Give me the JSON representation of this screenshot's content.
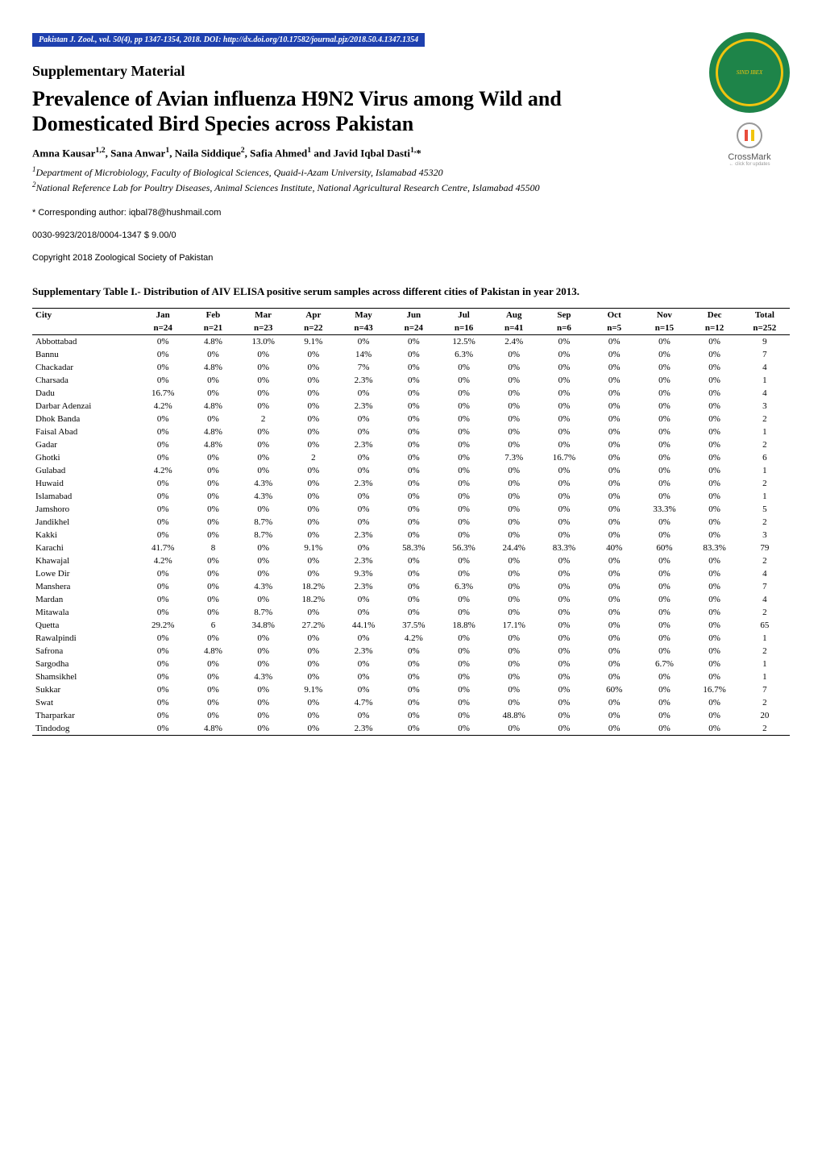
{
  "journal": {
    "citation": "Pakistan J. Zool., vol. 50(4), pp 1347-1354, 2018.",
    "doi_label": "DOI",
    "doi_text": ": http://dx.doi.org/10.17582/journal.pjz/2018.50.4.1347.1354",
    "header_bg": "#1e40af",
    "header_color": "#ffffff"
  },
  "logos": {
    "society_bg": "#1e8449",
    "society_ring": "#f1c40f",
    "society_text": "SIND IBEX",
    "crossmark_label": "CrossMark",
    "crossmark_sub": "← click for updates"
  },
  "header": {
    "supplementary": "Supplementary Material",
    "title": "Prevalence of Avian influenza H9N2 Virus among Wild and Domesticated Bird Species across Pakistan"
  },
  "authors": {
    "line": "Amna Kausar<sup>1,2</sup>, Sana Anwar<sup>1</sup>, Naila Siddique<sup>2</sup>, Safia Ahmed<sup>1</sup> and Javid Iqbal Dasti<sup>1,</sup>*",
    "aff1": "<sup>1</sup>Department of Microbiology, Faculty of Biological Sciences, Quaid-i-Azam University, Islamabad 45320",
    "aff2": "<sup>2</sup>National Reference Lab for Poultry Diseases, Animal Sciences Institute, National Agricultural Research Centre, Islamabad 45500"
  },
  "footer": {
    "corresponding": "*    Corresponding author: iqbal78@hushmail.com",
    "issn": "0030-9923/2018/0004-1347 $ 9.00/0",
    "copyright": "Copyright 2018 Zoological Society of Pakistan"
  },
  "table": {
    "caption": "Supplementary Table I.- Distribution of AIV ELISA positive serum samples across different cities of Pakistan in year 2013.",
    "font_size": 11,
    "columns": [
      "City",
      "Jan",
      "Feb",
      "Mar",
      "Apr",
      "May",
      "Jun",
      "Jul",
      "Aug",
      "Sep",
      "Oct",
      "Nov",
      "Dec",
      "Total"
    ],
    "subheader": [
      "",
      "n=24",
      "n=21",
      "n=23",
      "n=22",
      "n=43",
      "n=24",
      "n=16",
      "n=41",
      "n=6",
      "n=5",
      "n=15",
      "n=12",
      "n=252"
    ],
    "rows": [
      [
        "Abbottabad",
        "0%",
        "4.8%",
        "13.0%",
        "9.1%",
        "0%",
        "0%",
        "12.5%",
        "2.4%",
        "0%",
        "0%",
        "0%",
        "0%",
        "9"
      ],
      [
        "Bannu",
        "0%",
        "0%",
        "0%",
        "0%",
        "14%",
        "0%",
        "6.3%",
        "0%",
        "0%",
        "0%",
        "0%",
        "0%",
        "7"
      ],
      [
        "Chackadar",
        "0%",
        "4.8%",
        "0%",
        "0%",
        "7%",
        "0%",
        "0%",
        "0%",
        "0%",
        "0%",
        "0%",
        "0%",
        "4"
      ],
      [
        "Charsada",
        "0%",
        "0%",
        "0%",
        "0%",
        "2.3%",
        "0%",
        "0%",
        "0%",
        "0%",
        "0%",
        "0%",
        "0%",
        "1"
      ],
      [
        "Dadu",
        "16.7%",
        "0%",
        "0%",
        "0%",
        "0%",
        "0%",
        "0%",
        "0%",
        "0%",
        "0%",
        "0%",
        "0%",
        "4"
      ],
      [
        "Darbar Adenzai",
        "4.2%",
        "4.8%",
        "0%",
        "0%",
        "2.3%",
        "0%",
        "0%",
        "0%",
        "0%",
        "0%",
        "0%",
        "0%",
        "3"
      ],
      [
        "Dhok Banda",
        "0%",
        "0%",
        "2",
        "0%",
        "0%",
        "0%",
        "0%",
        "0%",
        "0%",
        "0%",
        "0%",
        "0%",
        "2"
      ],
      [
        "Faisal Abad",
        "0%",
        "4.8%",
        "0%",
        "0%",
        "0%",
        "0%",
        "0%",
        "0%",
        "0%",
        "0%",
        "0%",
        "0%",
        "1"
      ],
      [
        "Gadar",
        "0%",
        "4.8%",
        "0%",
        "0%",
        "2.3%",
        "0%",
        "0%",
        "0%",
        "0%",
        "0%",
        "0%",
        "0%",
        "2"
      ],
      [
        "Ghotki",
        "0%",
        "0%",
        "0%",
        "2",
        "0%",
        "0%",
        "0%",
        "7.3%",
        "16.7%",
        "0%",
        "0%",
        "0%",
        "6"
      ],
      [
        "Gulabad",
        "4.2%",
        "0%",
        "0%",
        "0%",
        "0%",
        "0%",
        "0%",
        "0%",
        "0%",
        "0%",
        "0%",
        "0%",
        "1"
      ],
      [
        "Huwaid",
        "0%",
        "0%",
        "4.3%",
        "0%",
        "2.3%",
        "0%",
        "0%",
        "0%",
        "0%",
        "0%",
        "0%",
        "0%",
        "2"
      ],
      [
        "Islamabad",
        "0%",
        "0%",
        "4.3%",
        "0%",
        "0%",
        "0%",
        "0%",
        "0%",
        "0%",
        "0%",
        "0%",
        "0%",
        "1"
      ],
      [
        "Jamshoro",
        "0%",
        "0%",
        "0%",
        "0%",
        "0%",
        "0%",
        "0%",
        "0%",
        "0%",
        "0%",
        "33.3%",
        "0%",
        "5"
      ],
      [
        "Jandikhel",
        "0%",
        "0%",
        "8.7%",
        "0%",
        "0%",
        "0%",
        "0%",
        "0%",
        "0%",
        "0%",
        "0%",
        "0%",
        "2"
      ],
      [
        "Kakki",
        "0%",
        "0%",
        "8.7%",
        "0%",
        "2.3%",
        "0%",
        "0%",
        "0%",
        "0%",
        "0%",
        "0%",
        "0%",
        "3"
      ],
      [
        "Karachi",
        "41.7%",
        "8",
        "0%",
        "9.1%",
        "0%",
        "58.3%",
        "56.3%",
        "24.4%",
        "83.3%",
        "40%",
        "60%",
        "83.3%",
        "79"
      ],
      [
        "Khawajal",
        "4.2%",
        "0%",
        "0%",
        "0%",
        "2.3%",
        "0%",
        "0%",
        "0%",
        "0%",
        "0%",
        "0%",
        "0%",
        "2"
      ],
      [
        "Lowe Dir",
        "0%",
        "0%",
        "0%",
        "0%",
        "9.3%",
        "0%",
        "0%",
        "0%",
        "0%",
        "0%",
        "0%",
        "0%",
        "4"
      ],
      [
        "Manshera",
        "0%",
        "0%",
        "4.3%",
        "18.2%",
        "2.3%",
        "0%",
        "6.3%",
        "0%",
        "0%",
        "0%",
        "0%",
        "0%",
        "7"
      ],
      [
        "Mardan",
        "0%",
        "0%",
        "0%",
        "18.2%",
        "0%",
        "0%",
        "0%",
        "0%",
        "0%",
        "0%",
        "0%",
        "0%",
        "4"
      ],
      [
        "Mitawala",
        "0%",
        "0%",
        "8.7%",
        "0%",
        "0%",
        "0%",
        "0%",
        "0%",
        "0%",
        "0%",
        "0%",
        "0%",
        "2"
      ],
      [
        "Quetta",
        "29.2%",
        "6",
        "34.8%",
        "27.2%",
        "44.1%",
        "37.5%",
        "18.8%",
        "17.1%",
        "0%",
        "0%",
        "0%",
        "0%",
        "65"
      ],
      [
        "Rawalpindi",
        "0%",
        "0%",
        "0%",
        "0%",
        "0%",
        "4.2%",
        "0%",
        "0%",
        "0%",
        "0%",
        "0%",
        "0%",
        "1"
      ],
      [
        "Safrona",
        "0%",
        "4.8%",
        "0%",
        "0%",
        "2.3%",
        "0%",
        "0%",
        "0%",
        "0%",
        "0%",
        "0%",
        "0%",
        "2"
      ],
      [
        "Sargodha",
        "0%",
        "0%",
        "0%",
        "0%",
        "0%",
        "0%",
        "0%",
        "0%",
        "0%",
        "0%",
        "6.7%",
        "0%",
        "1"
      ],
      [
        "Shamsikhel",
        "0%",
        "0%",
        "4.3%",
        "0%",
        "0%",
        "0%",
        "0%",
        "0%",
        "0%",
        "0%",
        "0%",
        "0%",
        "1"
      ],
      [
        "Sukkar",
        "0%",
        "0%",
        "0%",
        "9.1%",
        "0%",
        "0%",
        "0%",
        "0%",
        "0%",
        "60%",
        "0%",
        "16.7%",
        "7"
      ],
      [
        "Swat",
        "0%",
        "0%",
        "0%",
        "0%",
        "4.7%",
        "0%",
        "0%",
        "0%",
        "0%",
        "0%",
        "0%",
        "0%",
        "2"
      ],
      [
        "Tharparkar",
        "0%",
        "0%",
        "0%",
        "0%",
        "0%",
        "0%",
        "0%",
        "48.8%",
        "0%",
        "0%",
        "0%",
        "0%",
        "20"
      ],
      [
        "Tindodog",
        "0%",
        "4.8%",
        "0%",
        "0%",
        "2.3%",
        "0%",
        "0%",
        "0%",
        "0%",
        "0%",
        "0%",
        "0%",
        "2"
      ]
    ],
    "border_color": "#000000",
    "col_widths": [
      "110px",
      "48px",
      "48px",
      "48px",
      "48px",
      "48px",
      "48px",
      "48px",
      "48px",
      "48px",
      "48px",
      "48px",
      "48px",
      "48px"
    ]
  }
}
